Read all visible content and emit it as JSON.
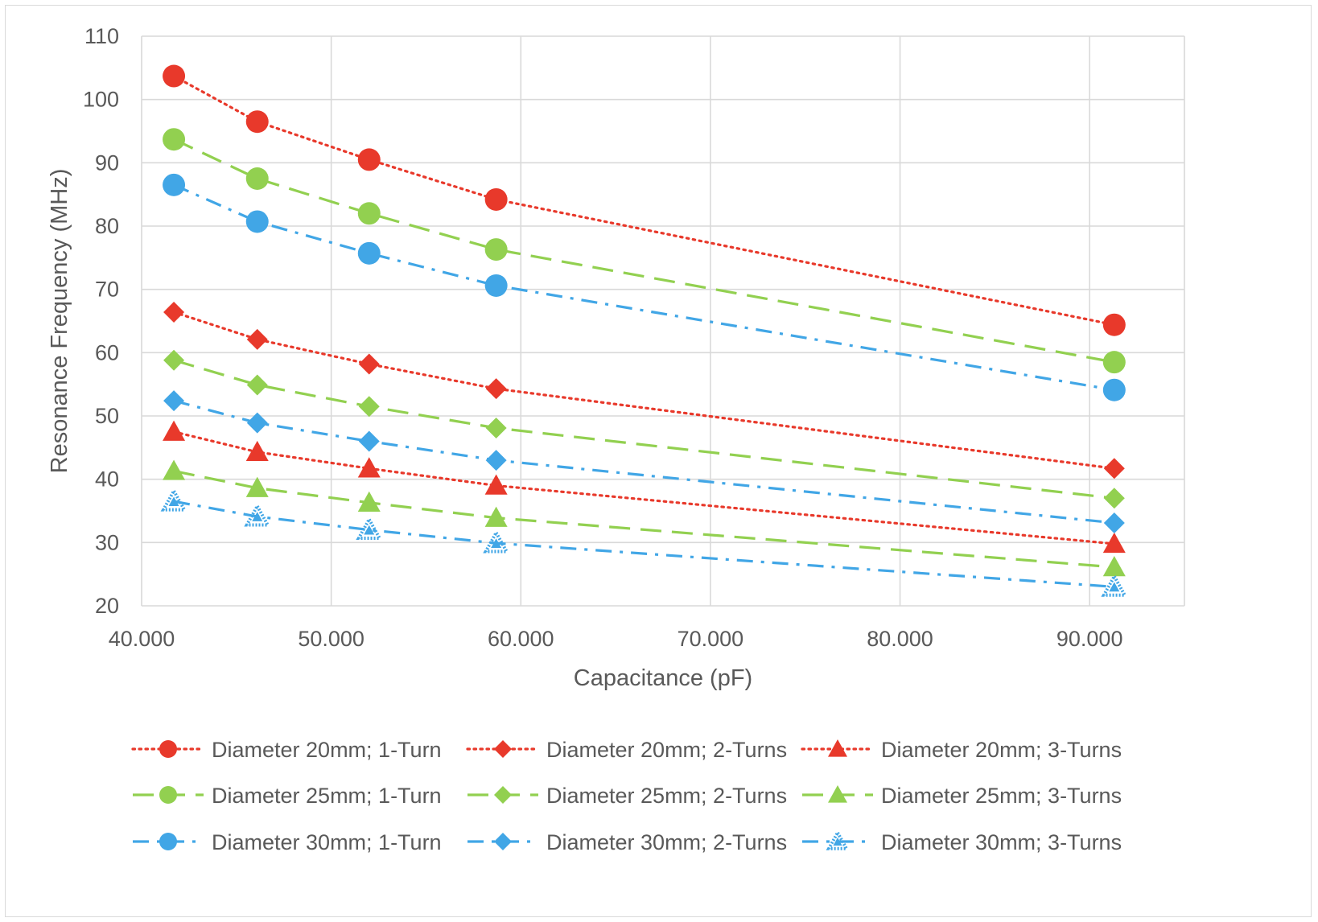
{
  "chart_data": {
    "type": "scatter",
    "title": "",
    "xlabel": "Capacitance (pF)",
    "ylabel": "Resonance Frequency (MHz)",
    "xlim": [
      40,
      95
    ],
    "ylim": [
      20,
      110
    ],
    "x_ticks": [
      40,
      50,
      60,
      70,
      80,
      90
    ],
    "x_tick_labels": [
      "40.000",
      "50.000",
      "60.000",
      "70.000",
      "80.000",
      "90.000"
    ],
    "y_ticks": [
      20,
      30,
      40,
      50,
      60,
      70,
      80,
      90,
      100,
      110
    ],
    "y_tick_labels": [
      "20",
      "30",
      "40",
      "50",
      "60",
      "70",
      "80",
      "90",
      "100",
      "110"
    ],
    "grid": true,
    "legend_position": "bottom",
    "x": [
      41.7,
      46.1,
      52.0,
      58.7,
      91.3
    ],
    "series": [
      {
        "name": "Diameter 20mm; 1-Turn",
        "color": "#e8392b",
        "marker": "circle",
        "line": "dotted",
        "values": [
          103.7,
          96.5,
          90.5,
          84.2,
          64.4
        ]
      },
      {
        "name": "Diameter 20mm; 2-Turns",
        "color": "#e8392b",
        "marker": "diamond",
        "line": "dotted",
        "values": [
          66.4,
          62.1,
          58.2,
          54.3,
          41.7
        ]
      },
      {
        "name": "Diameter 20mm; 3-Turns",
        "color": "#e8392b",
        "marker": "triangle",
        "line": "dotted",
        "values": [
          47.5,
          44.3,
          41.7,
          39.0,
          29.8
        ]
      },
      {
        "name": "Diameter 25mm; 1-Turn",
        "color": "#92d050",
        "marker": "circle",
        "line": "dashed",
        "values": [
          93.7,
          87.5,
          82.0,
          76.3,
          58.5
        ]
      },
      {
        "name": "Diameter 25mm; 2-Turns",
        "color": "#92d050",
        "marker": "diamond",
        "line": "dashed",
        "values": [
          58.8,
          54.9,
          51.5,
          48.1,
          37.0
        ]
      },
      {
        "name": "Diameter 25mm; 3-Turns",
        "color": "#92d050",
        "marker": "triangle",
        "line": "dashed",
        "values": [
          41.3,
          38.6,
          36.3,
          33.9,
          26.1
        ]
      },
      {
        "name": "Diameter 30mm; 1-Turn",
        "color": "#41a6e6",
        "marker": "circle",
        "line": "dashdot",
        "values": [
          86.5,
          80.7,
          75.7,
          70.6,
          54.1
        ]
      },
      {
        "name": "Diameter 30mm; 2-Turns",
        "color": "#41a6e6",
        "marker": "diamond",
        "line": "dashdot",
        "values": [
          52.4,
          48.9,
          46.0,
          43.0,
          33.1
        ]
      },
      {
        "name": "Diameter 30mm; 3-Turns",
        "color": "#41a6e6",
        "marker": "star-triangle",
        "line": "dashdot",
        "values": [
          36.5,
          34.1,
          32.0,
          29.9,
          23.0
        ]
      }
    ]
  }
}
